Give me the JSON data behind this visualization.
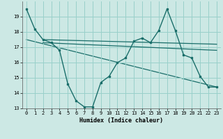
{
  "xlabel": "Humidex (Indice chaleur)",
  "bg_color": "#cce8e4",
  "grid_color": "#99d0ca",
  "line_color": "#1a6e6a",
  "xlim": [
    -0.5,
    23.5
  ],
  "ylim": [
    13,
    20
  ],
  "yticks": [
    13,
    14,
    15,
    16,
    17,
    18,
    19
  ],
  "xticks": [
    0,
    1,
    2,
    3,
    4,
    5,
    6,
    7,
    8,
    9,
    10,
    11,
    12,
    13,
    14,
    15,
    16,
    17,
    18,
    19,
    20,
    21,
    22,
    23
  ],
  "line1_x": [
    0,
    1,
    2,
    3,
    4,
    5,
    6,
    7,
    8,
    9,
    10,
    11,
    12,
    13,
    14,
    15,
    16,
    17,
    18,
    19,
    20,
    21,
    22,
    23
  ],
  "line1_y": [
    19.5,
    18.2,
    17.5,
    17.3,
    16.8,
    14.6,
    13.5,
    13.1,
    13.1,
    14.7,
    15.1,
    16.0,
    16.3,
    17.4,
    17.6,
    17.3,
    18.1,
    19.5,
    18.1,
    16.5,
    16.3,
    15.1,
    14.4,
    14.4
  ],
  "line2_x": [
    2,
    23
  ],
  "line2_y": [
    17.5,
    17.2
  ],
  "line3_x": [
    2,
    23
  ],
  "line3_y": [
    17.3,
    16.8
  ],
  "line4_x": [
    0,
    23
  ],
  "line4_y": [
    17.5,
    14.4
  ]
}
